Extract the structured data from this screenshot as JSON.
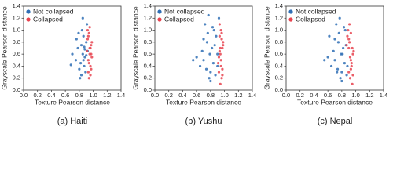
{
  "chart_data": [
    {
      "type": "scatter",
      "title": "(a) Haiti",
      "xlabel": "Texture Pearson distance",
      "ylabel": "Grayscale Pearson distance",
      "xlim": [
        0,
        1.4
      ],
      "ylim": [
        0,
        1.4
      ],
      "xticks": [
        {
          "value": 0,
          "label": "0.0"
        },
        0.2,
        0.4,
        0.6,
        0.8,
        {
          "value": 1,
          "label": "1.0"
        },
        1.2,
        1.4
      ],
      "yticks": [
        {
          "value": 0,
          "label": "0.0"
        },
        0.2,
        0.4,
        0.6,
        0.8,
        {
          "value": 1,
          "label": "1.0"
        },
        1.2,
        1.4
      ],
      "legend": "upper left",
      "series": [
        {
          "name": "Not collapsed",
          "color": "#2f6eb5",
          "x": [
            0.82,
            0.85,
            0.78,
            0.88,
            0.9,
            0.75,
            0.86,
            0.8,
            0.92,
            0.7,
            0.84,
            0.87,
            0.83,
            0.89,
            0.76,
            0.81,
            0.91,
            0.86,
            0.79,
            0.88,
            0.68,
            0.85,
            0.9,
            0.83,
            0.87
          ],
          "y": [
            0.45,
            0.6,
            0.7,
            0.55,
            0.8,
            0.5,
            0.9,
            0.35,
            0.65,
            0.6,
            1.0,
            0.4,
            0.75,
            0.3,
            0.85,
            0.2,
            1.1,
            0.5,
            0.95,
            0.68,
            0.42,
            1.2,
            0.58,
            0.25,
            0.72
          ]
        },
        {
          "name": "Collapsed",
          "color": "#e8434f",
          "x": [
            0.93,
            0.95,
            0.97,
            0.92,
            0.96,
            0.94,
            0.98,
            0.93,
            0.95,
            0.97,
            0.91,
            0.96,
            0.94,
            0.98,
            0.92,
            0.95,
            0.97,
            0.93,
            0.96,
            0.94
          ],
          "y": [
            0.5,
            0.7,
            0.6,
            0.85,
            0.4,
            0.95,
            0.55,
            0.3,
            1.05,
            0.75,
            0.65,
            0.25,
            0.45,
            0.8,
            1.0,
            0.6,
            0.35,
            0.9,
            0.7,
            0.2
          ]
        }
      ]
    },
    {
      "type": "scatter",
      "title": "(b) Yushu",
      "xlabel": "Texture Pearson distance",
      "ylabel": "Grayscale Pearson distance",
      "xlim": [
        0,
        1.4
      ],
      "ylim": [
        0,
        1.4
      ],
      "xticks": [
        {
          "value": 0,
          "label": "0.0"
        },
        0.2,
        0.4,
        0.6,
        0.8,
        {
          "value": 1,
          "label": "1.0"
        },
        1.2,
        1.4
      ],
      "yticks": [
        {
          "value": 0,
          "label": "0.0"
        },
        0.2,
        0.4,
        0.6,
        0.8,
        {
          "value": 1,
          "label": "1.0"
        },
        1.2,
        1.4
      ],
      "legend": "upper left",
      "series": [
        {
          "name": "Not collapsed",
          "color": "#2f6eb5",
          "x": [
            0.7,
            0.75,
            0.8,
            0.85,
            0.9,
            0.65,
            0.72,
            0.78,
            0.82,
            0.88,
            0.6,
            0.68,
            0.76,
            0.84,
            0.92,
            0.74,
            0.8,
            0.86,
            0.7,
            0.83,
            0.55,
            0.79,
            0.87,
            0.9,
            0.77
          ],
          "y": [
            0.5,
            0.8,
            0.3,
            1.0,
            0.6,
            0.4,
            1.1,
            0.2,
            0.7,
            0.9,
            0.55,
            0.65,
            0.95,
            0.45,
            1.2,
            0.35,
            0.15,
            0.75,
            0.85,
            1.05,
            0.5,
            0.6,
            0.25,
            0.4,
            1.25
          ]
        },
        {
          "name": "Collapsed",
          "color": "#e8434f",
          "x": [
            0.92,
            0.95,
            0.97,
            0.93,
            0.96,
            0.94,
            0.98,
            0.91,
            0.95,
            0.97,
            0.93,
            0.96,
            0.94,
            0.92,
            0.98,
            0.95,
            0.93,
            0.97,
            0.96,
            0.94
          ],
          "y": [
            0.3,
            0.5,
            0.7,
            0.9,
            0.2,
            0.6,
            0.8,
            0.45,
            1.0,
            0.35,
            0.65,
            0.85,
            0.1,
            0.55,
            0.75,
            0.4,
            1.1,
            0.25,
            0.95,
            0.7
          ]
        }
      ]
    },
    {
      "type": "scatter",
      "title": "(c) Nepal",
      "xlabel": "Texture Pearson distance",
      "ylabel": "Grayscale Pearson distance",
      "xlim": [
        0,
        1.4
      ],
      "ylim": [
        0,
        1.4
      ],
      "xticks": [
        {
          "value": 0,
          "label": "0.0"
        },
        0.2,
        0.4,
        0.6,
        0.8,
        {
          "value": 1,
          "label": "1.0"
        },
        1.2,
        1.4
      ],
      "yticks": [
        {
          "value": 0,
          "label": "0.0"
        },
        0.2,
        0.4,
        0.6,
        0.8,
        {
          "value": 1,
          "label": "1.0"
        },
        1.2,
        1.4
      ],
      "legend": "upper left",
      "series": [
        {
          "name": "Not collapsed",
          "color": "#2f6eb5",
          "x": [
            0.7,
            0.75,
            0.8,
            0.85,
            0.65,
            0.72,
            0.78,
            0.82,
            0.6,
            0.68,
            0.76,
            0.84,
            0.74,
            0.8,
            0.86,
            0.7,
            0.83,
            0.55,
            0.79,
            0.87,
            0.62,
            0.77,
            0.73,
            0.81,
            0.88
          ],
          "y": [
            0.5,
            0.8,
            0.3,
            1.0,
            0.4,
            1.1,
            0.2,
            0.7,
            0.55,
            0.65,
            0.95,
            0.45,
            0.35,
            0.15,
            0.75,
            0.85,
            1.05,
            0.5,
            0.6,
            0.25,
            0.9,
            1.2,
            0.3,
            0.6,
            0.4
          ]
        },
        {
          "name": "Collapsed",
          "color": "#e8434f",
          "x": [
            0.9,
            0.93,
            0.95,
            0.88,
            0.92,
            0.96,
            0.91,
            0.94,
            0.89,
            0.93,
            0.97,
            0.9,
            0.95,
            0.92,
            0.87,
            0.94,
            0.91,
            0.96,
            0.93,
            0.9
          ],
          "y": [
            0.3,
            0.5,
            0.7,
            0.9,
            0.2,
            0.6,
            0.8,
            0.45,
            1.0,
            0.35,
            0.65,
            0.85,
            0.1,
            0.55,
            0.75,
            0.4,
            1.1,
            0.25,
            0.95,
            0.7
          ]
        }
      ]
    }
  ]
}
